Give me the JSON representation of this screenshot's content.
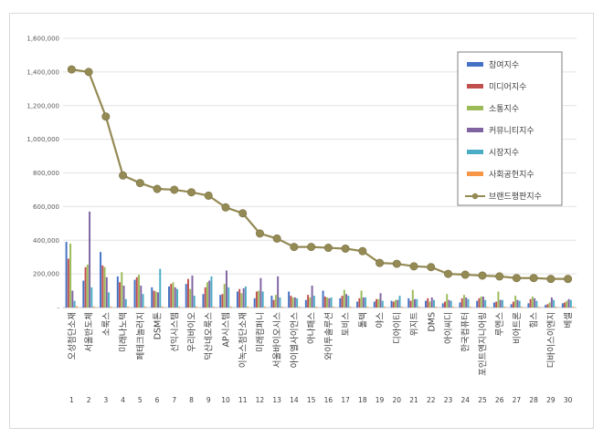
{
  "chart_data": {
    "type": "bar",
    "title": "",
    "xlabel": "",
    "ylabel": "",
    "ylim": [
      0,
      1600000
    ],
    "yticks": [
      0,
      200000,
      400000,
      600000,
      800000,
      1000000,
      1200000,
      1400000,
      1600000
    ],
    "ytick_labels": [
      "-",
      "200,000",
      "400,000",
      "600,000",
      "800,000",
      "1,000,000",
      "1,200,000",
      "1,400,000",
      "1,600,000"
    ],
    "grid": true,
    "legend_position": "top-right",
    "categories": [
      "오성첨단소재",
      "서울반도체",
      "소룩스",
      "미래나노텍",
      "페테크놀러지",
      "DSM톤",
      "선익시스템",
      "우리바이오",
      "덕산네오룩스",
      "AP시스템",
      "이녹스첨단소재",
      "미래컴퍼니",
      "서울바이오시스",
      "아이엘사이언스",
      "아나패스",
      "와이투솔루션",
      "토비스",
      "톨텍",
      "야스",
      "디아이티",
      "위지트",
      "DMS",
      "아이씨디",
      "한국컴퓨터",
      "포인트엔지니어링",
      "루멘스",
      "비아트론",
      "힘스",
      "디바이스이엔지",
      "베셀"
    ],
    "ranks": [
      "1",
      "2",
      "3",
      "4",
      "5",
      "6",
      "7",
      "8",
      "9",
      "10",
      "11",
      "12",
      "13",
      "14",
      "15",
      "16",
      "17",
      "18",
      "19",
      "20",
      "21",
      "22",
      "23",
      "24",
      "25",
      "26",
      "27",
      "28",
      "29",
      "30"
    ],
    "series": [
      {
        "name": "참여지수",
        "kind": "bar",
        "color": "#4472c4",
        "values": [
          390000,
          160000,
          330000,
          185000,
          165000,
          120000,
          125000,
          140000,
          80000,
          75000,
          95000,
          55000,
          70000,
          95000,
          45000,
          100000,
          55000,
          35000,
          35000,
          40000,
          55000,
          40000,
          25000,
          30000,
          40000,
          30000,
          20000,
          25000,
          15000,
          25000
        ]
      },
      {
        "name": "미디어지수",
        "kind": "bar",
        "color": "#c0504d",
        "values": [
          290000,
          240000,
          250000,
          150000,
          180000,
          100000,
          140000,
          170000,
          120000,
          80000,
          110000,
          95000,
          45000,
          70000,
          75000,
          65000,
          70000,
          55000,
          50000,
          35000,
          40000,
          55000,
          35000,
          55000,
          55000,
          35000,
          35000,
          50000,
          20000,
          30000
        ]
      },
      {
        "name": "소통지수",
        "kind": "bar",
        "color": "#9bbb59",
        "values": [
          380000,
          255000,
          240000,
          210000,
          195000,
          95000,
          150000,
          110000,
          150000,
          140000,
          85000,
          100000,
          75000,
          60000,
          60000,
          60000,
          105000,
          100000,
          50000,
          45000,
          105000,
          35000,
          80000,
          75000,
          65000,
          95000,
          70000,
          65000,
          30000,
          40000
        ]
      },
      {
        "name": "커뮤니티지수",
        "kind": "bar",
        "color": "#8064a2",
        "values": [
          100000,
          570000,
          180000,
          130000,
          130000,
          90000,
          120000,
          190000,
          160000,
          220000,
          115000,
          175000,
          185000,
          60000,
          130000,
          55000,
          80000,
          60000,
          85000,
          45000,
          50000,
          60000,
          45000,
          60000,
          65000,
          45000,
          45000,
          55000,
          60000,
          50000
        ]
      },
      {
        "name": "시장지수",
        "kind": "bar",
        "color": "#4bacc6",
        "values": [
          40000,
          120000,
          90000,
          50000,
          80000,
          230000,
          110000,
          70000,
          185000,
          120000,
          125000,
          95000,
          60000,
          55000,
          70000,
          60000,
          70000,
          60000,
          40000,
          70000,
          50000,
          45000,
          40000,
          50000,
          45000,
          45000,
          40000,
          40000,
          45000,
          45000
        ]
      },
      {
        "name": "사회공헌지수",
        "kind": "bar",
        "color": "#f79646",
        "values": [
          8000,
          6000,
          6000,
          6000,
          6000,
          6000,
          6000,
          6000,
          5000,
          6000,
          6000,
          5000,
          5000,
          5000,
          5000,
          5000,
          5000,
          5000,
          5000,
          5000,
          5000,
          5000,
          5000,
          5000,
          5000,
          5000,
          5000,
          5000,
          5000,
          5000
        ]
      },
      {
        "name": "브랜드평판지수",
        "kind": "line",
        "color": "#948a54",
        "values": [
          1415000,
          1400000,
          1135000,
          785000,
          740000,
          705000,
          700000,
          685000,
          665000,
          595000,
          560000,
          440000,
          410000,
          360000,
          360000,
          355000,
          350000,
          335000,
          265000,
          260000,
          245000,
          240000,
          200000,
          195000,
          190000,
          185000,
          175000,
          175000,
          170000,
          170000
        ]
      }
    ]
  }
}
